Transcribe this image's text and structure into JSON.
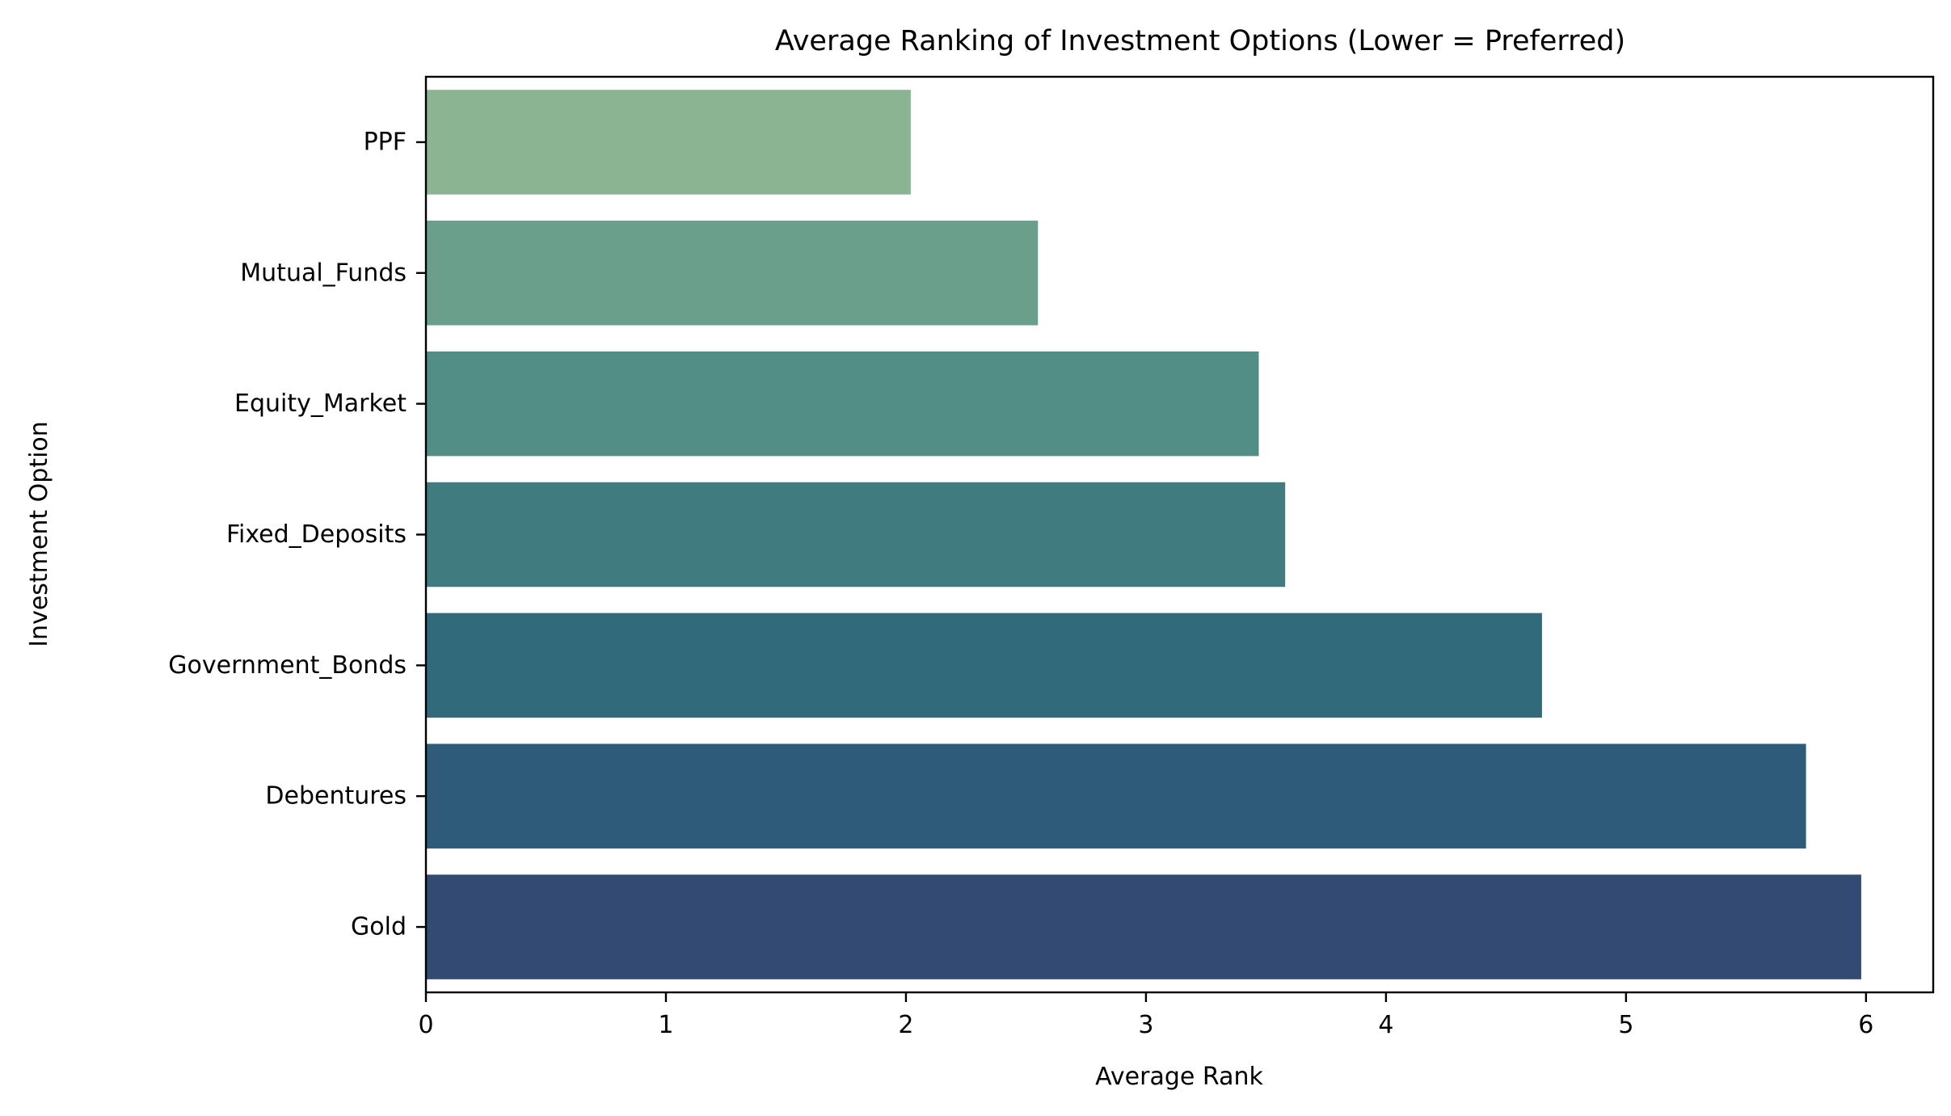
{
  "chart_data": {
    "type": "bar",
    "orientation": "horizontal",
    "title": "Average Ranking of Investment Options (Lower = Preferred)",
    "xlabel": "Average Rank",
    "ylabel": "Investment Option",
    "categories": [
      "PPF",
      "Mutual_Funds",
      "Equity_Market",
      "Fixed_Deposits",
      "Government_Bonds",
      "Debentures",
      "Gold"
    ],
    "values": [
      2.02,
      2.55,
      3.47,
      3.58,
      4.65,
      5.75,
      5.98
    ],
    "colors": [
      "#8bb592",
      "#6aa08b",
      "#528d86",
      "#407b80",
      "#306a7b",
      "#2d5b79",
      "#334b72"
    ],
    "xlim": [
      0,
      6.28
    ],
    "xticks": [
      0,
      1,
      2,
      3,
      4,
      5,
      6
    ],
    "grid": false,
    "legend": "none"
  }
}
